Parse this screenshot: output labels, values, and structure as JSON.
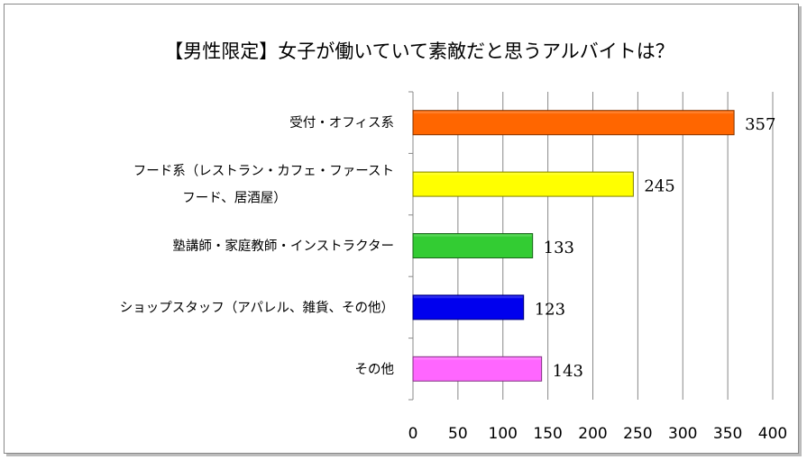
{
  "chart_data": {
    "type": "bar",
    "orientation": "horizontal",
    "title": "【男性限定】女子が働いていて素敵だと思うアルバイトは？",
    "categories": [
      [
        "受付・オフィス系"
      ],
      [
        "フード系（レストラン・カフェ・ファースト",
        "フード、居酒屋）"
      ],
      [
        "塾講師・家庭教師・インストラクター"
      ],
      [
        "ショップスタッフ（アパレル、雑貨、その他）"
      ],
      [
        "その他"
      ]
    ],
    "values": [
      357,
      245,
      133,
      123,
      143
    ],
    "colors": [
      "#ff6600",
      "#ffff00",
      "#33cc33",
      "#0000ee",
      "#ff66ff"
    ],
    "border_colors": [
      "#803300",
      "#808000",
      "#1a661a",
      "#000077",
      "#803380"
    ],
    "xlim": [
      0,
      400
    ],
    "xticks": [
      0,
      50,
      100,
      150,
      200,
      250,
      300,
      350,
      400
    ],
    "grid": true,
    "legend": "none",
    "data_labels": true
  }
}
